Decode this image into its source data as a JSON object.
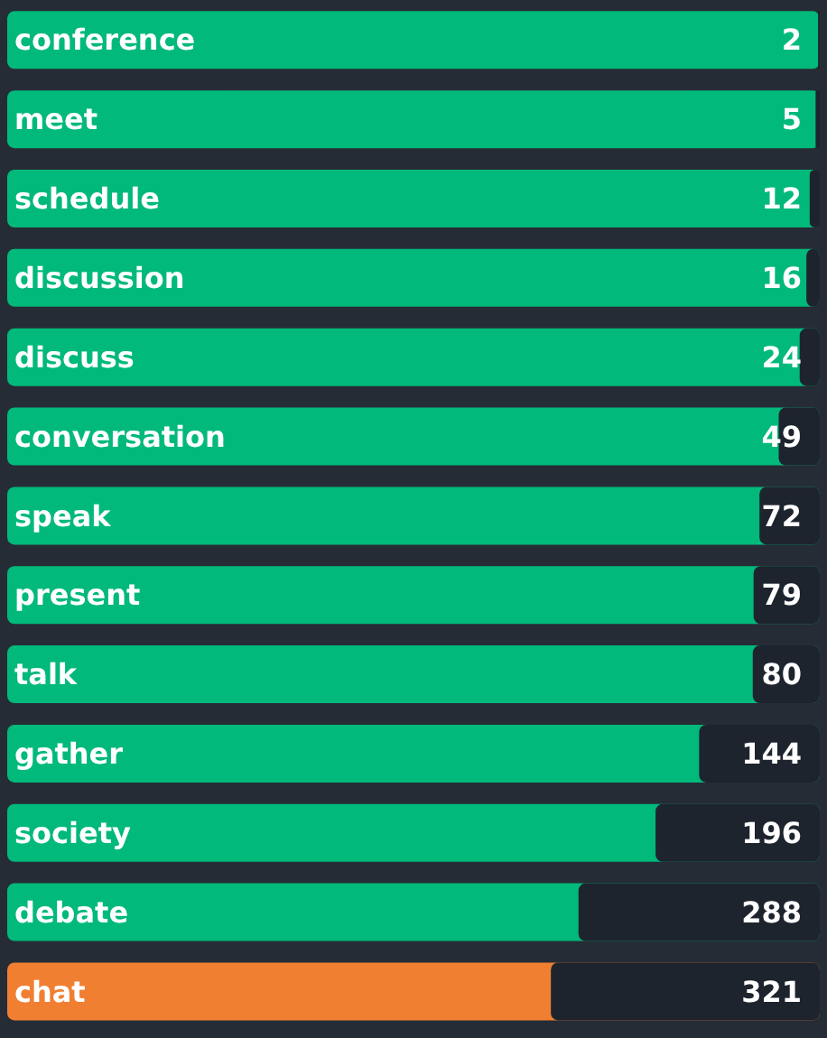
{
  "chart_data": {
    "type": "bar",
    "orientation": "horizontal",
    "data_labels": true,
    "categories": [
      "conference",
      "meet",
      "schedule",
      "discussion",
      "discuss",
      "conversation",
      "speak",
      "present",
      "talk",
      "gather",
      "society",
      "debate",
      "chat"
    ],
    "values": [
      2,
      5,
      12,
      16,
      24,
      49,
      72,
      79,
      80,
      144,
      196,
      288,
      321
    ],
    "xlim": [
      970,
      0
    ],
    "colors": [
      "#1e242d",
      "#1e242d",
      "#1e242d",
      "#1e242d",
      "#1e242d",
      "#1e242d",
      "#1e242d",
      "#1e242d",
      "#1e242d",
      "#1e242d",
      "#1e242d",
      "#1e242d",
      "#1e242d"
    ],
    "bands": [
      {
        "axis": "y",
        "from": "conference",
        "to": "conference",
        "color": "#00b97a"
      },
      {
        "axis": "y",
        "from": "meet",
        "to": "meet",
        "color": "#00b97a"
      },
      {
        "axis": "y",
        "from": "schedule",
        "to": "schedule",
        "color": "#00b97a"
      },
      {
        "axis": "y",
        "from": "discussion",
        "to": "discussion",
        "color": "#00b97a"
      },
      {
        "axis": "y",
        "from": "discuss",
        "to": "discuss",
        "color": "#00b97a"
      },
      {
        "axis": "y",
        "from": "conversation",
        "to": "conversation",
        "color": "#00b97a"
      },
      {
        "axis": "y",
        "from": "speak",
        "to": "speak",
        "color": "#00b97a"
      },
      {
        "axis": "y",
        "from": "present",
        "to": "present",
        "color": "#00b97a"
      },
      {
        "axis": "y",
        "from": "talk",
        "to": "talk",
        "color": "#00b97a"
      },
      {
        "axis": "y",
        "from": "gather",
        "to": "gather",
        "color": "#00b97a"
      },
      {
        "axis": "y",
        "from": "society",
        "to": "society",
        "color": "#00b97a"
      },
      {
        "axis": "y",
        "from": "debate",
        "to": "debate",
        "color": "#00b97a"
      },
      {
        "axis": "y",
        "from": "chat",
        "to": "chat",
        "color": "#f07f32"
      }
    ]
  }
}
